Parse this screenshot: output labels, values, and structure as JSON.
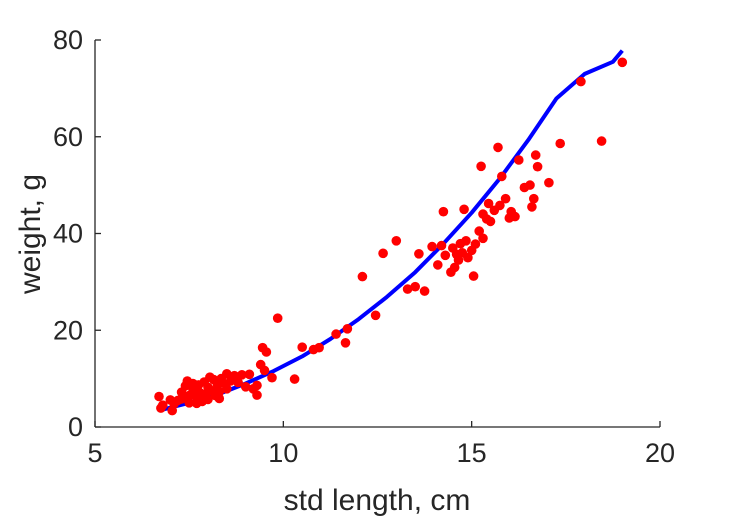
{
  "chart_data": {
    "type": "scatter",
    "xlabel": "std length, cm",
    "ylabel": "weight, g",
    "xlim": [
      5,
      20
    ],
    "ylim": [
      0,
      80
    ],
    "xticks": [
      5,
      10,
      15,
      20
    ],
    "yticks": [
      0,
      20,
      40,
      60,
      80
    ],
    "grid": false,
    "legend": "none",
    "series": [
      {
        "kind": "scatter",
        "color": "#ff0000",
        "points": [
          [
            6.7,
            6.3
          ],
          [
            6.75,
            3.9
          ],
          [
            6.8,
            4.5
          ],
          [
            7.0,
            5.6
          ],
          [
            7.05,
            3.4
          ],
          [
            7.1,
            4.8
          ],
          [
            7.2,
            5.5
          ],
          [
            7.3,
            7.2
          ],
          [
            7.3,
            5.8
          ],
          [
            7.4,
            8.5
          ],
          [
            7.45,
            9.5
          ],
          [
            7.5,
            6.5
          ],
          [
            7.5,
            5.0
          ],
          [
            7.6,
            9.0
          ],
          [
            7.6,
            7.8
          ],
          [
            7.7,
            6.2
          ],
          [
            7.7,
            4.9
          ],
          [
            7.75,
            8.7
          ],
          [
            7.8,
            7.0
          ],
          [
            7.85,
            5.3
          ],
          [
            7.9,
            9.3
          ],
          [
            7.95,
            6.8
          ],
          [
            8.0,
            8.2
          ],
          [
            8.0,
            5.7
          ],
          [
            8.05,
            10.3
          ],
          [
            8.1,
            7.5
          ],
          [
            8.15,
            9.8
          ],
          [
            8.2,
            6.5
          ],
          [
            8.25,
            8.8
          ],
          [
            8.3,
            7.3
          ],
          [
            8.3,
            5.9
          ],
          [
            8.35,
            10.0
          ],
          [
            8.4,
            9.1
          ],
          [
            8.5,
            11.0
          ],
          [
            8.5,
            7.9
          ],
          [
            8.6,
            9.5
          ],
          [
            8.7,
            10.6
          ],
          [
            8.8,
            9.2
          ],
          [
            8.9,
            10.8
          ],
          [
            9.0,
            8.3
          ],
          [
            9.1,
            10.9
          ],
          [
            9.2,
            7.9
          ],
          [
            9.3,
            8.6
          ],
          [
            9.3,
            6.6
          ],
          [
            9.4,
            12.9
          ],
          [
            9.45,
            16.4
          ],
          [
            9.5,
            11.7
          ],
          [
            9.55,
            15.5
          ],
          [
            9.7,
            10.2
          ],
          [
            9.85,
            22.5
          ],
          [
            10.3,
            9.9
          ],
          [
            10.5,
            16.5
          ],
          [
            10.8,
            16.0
          ],
          [
            10.95,
            16.4
          ],
          [
            11.4,
            19.2
          ],
          [
            11.65,
            17.4
          ],
          [
            11.7,
            20.3
          ],
          [
            12.1,
            31.1
          ],
          [
            12.45,
            23.1
          ],
          [
            12.65,
            35.9
          ],
          [
            13.0,
            38.5
          ],
          [
            13.3,
            28.5
          ],
          [
            13.5,
            29.0
          ],
          [
            13.6,
            35.8
          ],
          [
            13.75,
            28.1
          ],
          [
            13.95,
            37.3
          ],
          [
            14.1,
            33.5
          ],
          [
            14.2,
            37.5
          ],
          [
            14.25,
            44.5
          ],
          [
            14.3,
            35.5
          ],
          [
            14.45,
            32.0
          ],
          [
            14.5,
            37.0
          ],
          [
            14.55,
            33.0
          ],
          [
            14.6,
            35.7
          ],
          [
            14.65,
            34.5
          ],
          [
            14.7,
            37.9
          ],
          [
            14.75,
            36.0
          ],
          [
            14.8,
            45.0
          ],
          [
            14.85,
            38.5
          ],
          [
            14.9,
            35.0
          ],
          [
            15.0,
            36.5
          ],
          [
            15.05,
            31.2
          ],
          [
            15.1,
            37.8
          ],
          [
            15.2,
            40.5
          ],
          [
            15.25,
            53.9
          ],
          [
            15.3,
            39.0
          ],
          [
            15.3,
            44.0
          ],
          [
            15.4,
            43.0
          ],
          [
            15.45,
            46.2
          ],
          [
            15.5,
            42.5
          ],
          [
            15.6,
            44.8
          ],
          [
            15.7,
            57.8
          ],
          [
            15.75,
            45.8
          ],
          [
            15.8,
            51.8
          ],
          [
            15.9,
            47.2
          ],
          [
            16.0,
            43.2
          ],
          [
            16.05,
            44.5
          ],
          [
            16.15,
            43.5
          ],
          [
            16.25,
            55.2
          ],
          [
            16.4,
            49.5
          ],
          [
            16.55,
            50.0
          ],
          [
            16.6,
            45.5
          ],
          [
            16.65,
            47.2
          ],
          [
            16.7,
            56.2
          ],
          [
            16.75,
            53.8
          ],
          [
            17.05,
            50.5
          ],
          [
            17.35,
            58.6
          ],
          [
            17.9,
            71.4
          ],
          [
            18.45,
            59.1
          ],
          [
            19.0,
            75.4
          ]
        ]
      },
      {
        "kind": "line",
        "color": "#0000ff",
        "x": [
          6.75,
          7.5,
          8.25,
          9.0,
          9.75,
          10.5,
          11.25,
          12.0,
          12.75,
          13.5,
          14.25,
          15.0,
          15.75,
          16.5,
          17.25,
          18.0,
          18.75,
          19.0
        ],
        "y": [
          3.5,
          5.0,
          6.7,
          9.0,
          11.6,
          14.6,
          18.2,
          22.3,
          26.9,
          32.0,
          37.9,
          44.3,
          51.4,
          59.3,
          67.9,
          73.0,
          75.5,
          77.8
        ]
      }
    ]
  }
}
